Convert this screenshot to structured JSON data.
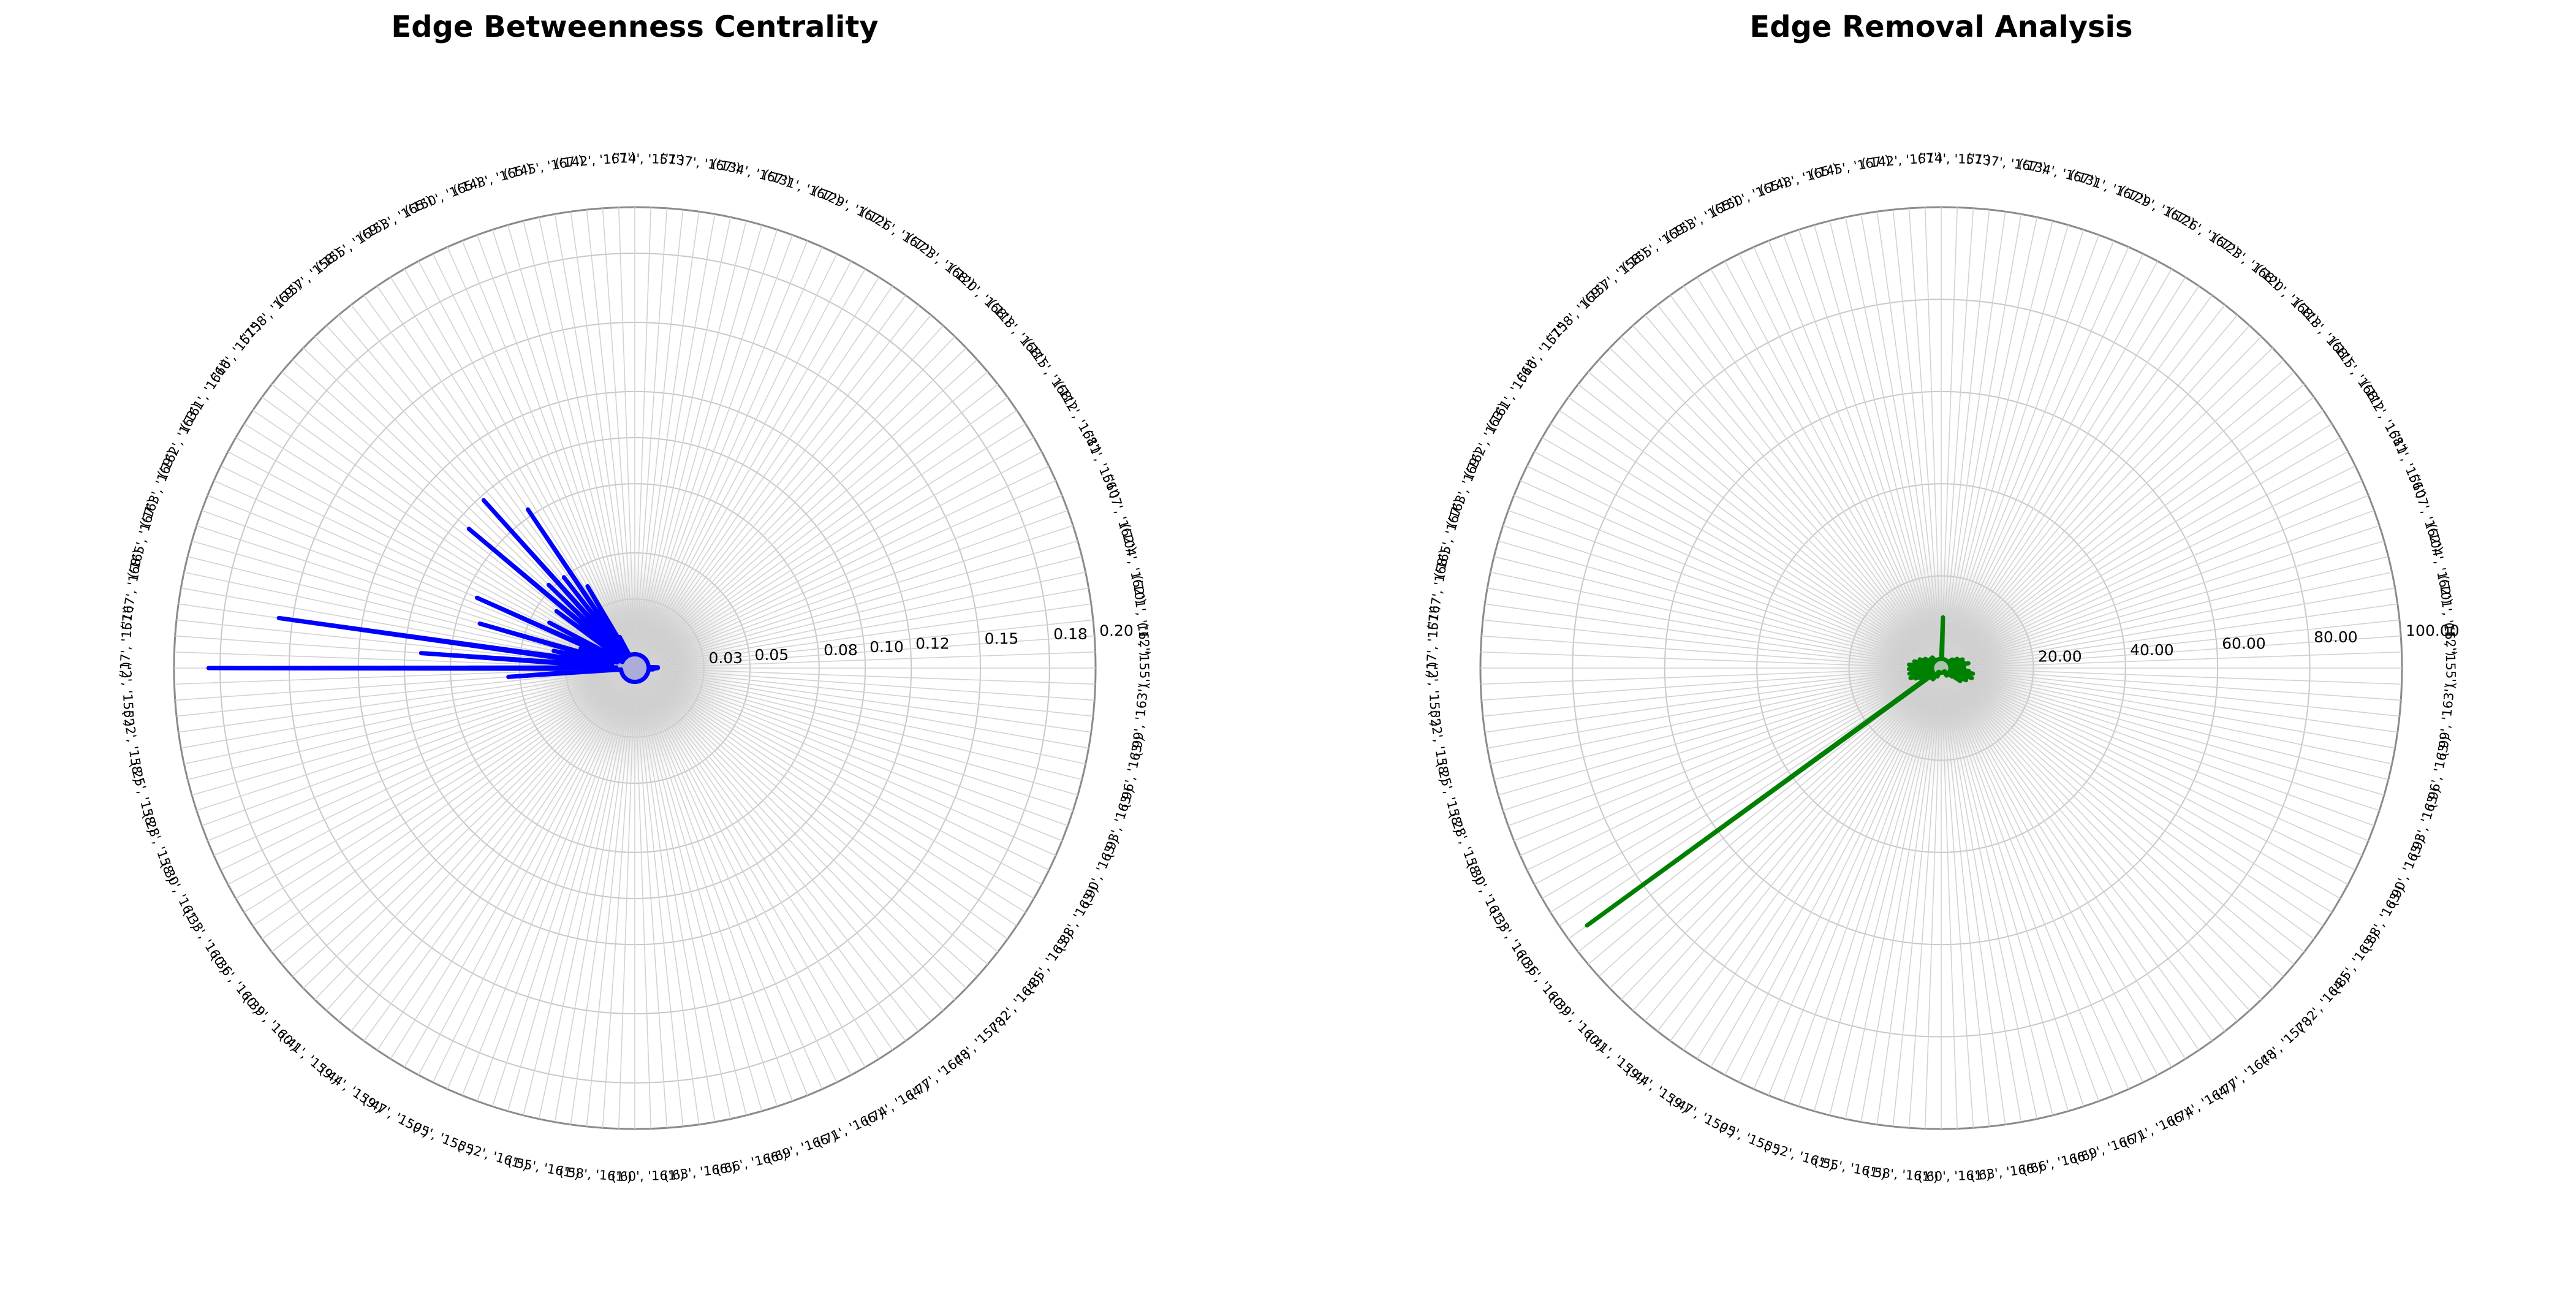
{
  "figure": {
    "background": "#ffffff"
  },
  "chart_data": [
    {
      "type": "line",
      "subtype": "polar",
      "title": "Edge Betweenness Centrality",
      "color": "#0000ff",
      "fill_color": "#0000ff",
      "rlim": [
        0,
        0.2
      ],
      "rticks": [
        0.03,
        0.05,
        0.08,
        0.1,
        0.12,
        0.15,
        0.18,
        0.2
      ],
      "rtick_labels": [
        "0.03",
        "0.05",
        "0.08",
        "0.10",
        "0.12",
        "0.15",
        "0.18",
        "0.20"
      ],
      "category_labels": [
        "('1', '155')",
        "('99', '163')",
        "('96', '163')",
        "('93', '163')",
        "('90', '163')",
        "('88', '163')",
        "('85', '163')",
        "('82', '164')",
        "('8', '157')",
        "('77', '164')",
        "('74', '164')",
        "('71', '166')",
        "('69', '166')",
        "('66', '166')",
        "('63', '166')",
        "('60', '161')",
        "('58', '161')",
        "('55', '161')",
        "('52', '161')",
        "('5', '155')",
        "('47', '159')",
        "('44', '159')",
        "('41', '159')",
        "('39', '160')",
        "('36', '160')",
        "('33', '160')",
        "('30', '161')",
        "('28', '158')",
        "('25', '158')",
        "('22', '158')",
        "('2', '155')",
        "('17', '157')",
        "('167', '168')",
        "('165', '167')",
        "('163', '169')",
        "('162', '163')",
        "('161', '166')",
        "('16', '157')",
        "('158', '169')",
        "('157', '158')",
        "('155', '169')",
        "('153', '165')",
        "('150', '165')",
        "('148', '165')",
        "('145', '167')",
        "('142', '167')",
        "('14', '157')",
        "('137', '167')",
        "('134', '167')",
        "('131', '167')",
        "('129', '167')",
        "('126', '167')",
        "('123', '168')",
        "('120', '168')",
        "('118', '168')",
        "('115', '168')",
        "('112', '168')",
        "('11', '156')",
        "('107', '162')",
        "('104', '162')",
        "('101', '162')"
      ],
      "n_spokes": 180,
      "values_description": "",
      "values": [
        0.01,
        0.008,
        0.008,
        0.006,
        0.006,
        0.006,
        0.006,
        0.006,
        0.006,
        0.006,
        0.006,
        0.006,
        0.006,
        0.006,
        0.006,
        0.006,
        0.006,
        0.006,
        0.006,
        0.006,
        0.006,
        0.006,
        0.006,
        0.006,
        0.006,
        0.006,
        0.006,
        0.006,
        0.006,
        0.006,
        0.006,
        0.006,
        0.006,
        0.006,
        0.006,
        0.006,
        0.006,
        0.006,
        0.006,
        0.006,
        0.006,
        0.006,
        0.006,
        0.006,
        0.006,
        0.006,
        0.006,
        0.006,
        0.006,
        0.006,
        0.006,
        0.006,
        0.006,
        0.006,
        0.006,
        0.006,
        0.006,
        0.006,
        0.006,
        0.006,
        0.006,
        0.006,
        0.006,
        0.006,
        0.006,
        0.006,
        0.006,
        0.006,
        0.006,
        0.006,
        0.006,
        0.006,
        0.006,
        0.006,
        0.006,
        0.006,
        0.006,
        0.006,
        0.006,
        0.006,
        0.006,
        0.006,
        0.006,
        0.006,
        0.006,
        0.006,
        0.006,
        0.006,
        0.055,
        0.01,
        0.185,
        0.008,
        0.093,
        0.01,
        0.156,
        0.01,
        0.036,
        0.01,
        0.07,
        0.008,
        0.025,
        0.01,
        0.075,
        0.006,
        0.042,
        0.006,
        0.012,
        0.01,
        0.042,
        0.006,
        0.094,
        0.008,
        0.052,
        0.006,
        0.098,
        0.006,
        0.05,
        0.006,
        0.083,
        0.006,
        0.041,
        0.01,
        0.015,
        0.008,
        0.006,
        0.006,
        0.006,
        0.006,
        0.006,
        0.006,
        0.006,
        0.006,
        0.006,
        0.006,
        0.006,
        0.006,
        0.006,
        0.006,
        0.006,
        0.006,
        0.006,
        0.006,
        0.006,
        0.006,
        0.006,
        0.006,
        0.006,
        0.006,
        0.006,
        0.006,
        0.006,
        0.006,
        0.006,
        0.006,
        0.006,
        0.006,
        0.006,
        0.006,
        0.006,
        0.006,
        0.006,
        0.006,
        0.006,
        0.006,
        0.006,
        0.006,
        0.006,
        0.006,
        0.006,
        0.006,
        0.006,
        0.006,
        0.006,
        0.006,
        0.006,
        0.006,
        0.006,
        0.006,
        0.006,
        0.01
      ],
      "grid": true,
      "legend": "none"
    },
    {
      "type": "line",
      "subtype": "polar",
      "title": "Edge Removal Analysis",
      "color": "#008000",
      "fill_color": "#008000",
      "rlim": [
        0,
        100
      ],
      "rticks": [
        20,
        40,
        60,
        80,
        100
      ],
      "rtick_labels": [
        "20.00",
        "40.00",
        "60.00",
        "80.00",
        "100.00"
      ],
      "category_labels": [
        "('1', '155')",
        "('99', '163')",
        "('96', '163')",
        "('93', '163')",
        "('90', '163')",
        "('88', '163')",
        "('85', '163')",
        "('82', '164')",
        "('8', '157')",
        "('77', '164')",
        "('74', '164')",
        "('71', '166')",
        "('69', '166')",
        "('66', '166')",
        "('63', '166')",
        "('60', '161')",
        "('58', '161')",
        "('55', '161')",
        "('52', '161')",
        "('5', '155')",
        "('47', '159')",
        "('44', '159')",
        "('41', '159')",
        "('39', '160')",
        "('36', '160')",
        "('33', '160')",
        "('30', '161')",
        "('28', '158')",
        "('25', '158')",
        "('22', '158')",
        "('2', '155')",
        "('17', '157')",
        "('167', '168')",
        "('165', '167')",
        "('163', '169')",
        "('162', '163')",
        "('161', '166')",
        "('16', '157')",
        "('158', '169')",
        "('157', '158')",
        "('155', '169')",
        "('153', '165')",
        "('150', '165')",
        "('148', '165')",
        "('145', '167')",
        "('142', '167')",
        "('14', '157')",
        "('137', '167')",
        "('134', '167')",
        "('131', '167')",
        "('129', '167')",
        "('126', '167')",
        "('123', '168')",
        "('120', '168')",
        "('118', '168')",
        "('115', '168')",
        "('112', '168')",
        "('11', '156')",
        "('107', '162')",
        "('104', '162')",
        "('101', '162')"
      ],
      "n_spokes": 180,
      "values": [
        5,
        3,
        2,
        6,
        2,
        7,
        2,
        6,
        2,
        7,
        2,
        5,
        2,
        6,
        2,
        4,
        2,
        5,
        2,
        3,
        2,
        2,
        1,
        2,
        1,
        2,
        1,
        2,
        1,
        1,
        1,
        1,
        1,
        1,
        1,
        1,
        1,
        1,
        1,
        1,
        1,
        1,
        1,
        1,
        1,
        1,
        1,
        1,
        1,
        1,
        1,
        1,
        1,
        1,
        1,
        1,
        1,
        2,
        1,
        2,
        1,
        2,
        1,
        3,
        2,
        3,
        2,
        3,
        2,
        3,
        2,
        3,
        95,
        3,
        2,
        4,
        2,
        5,
        2,
        6,
        2,
        7,
        2,
        5,
        2,
        7,
        2,
        6,
        3,
        7,
        2,
        6,
        3,
        7,
        2,
        5,
        3,
        6,
        2,
        4,
        2,
        5,
        2,
        3,
        2,
        4,
        2,
        3,
        2,
        3,
        2,
        3,
        2,
        2,
        2,
        3,
        2,
        2,
        2,
        2,
        2,
        2,
        2,
        2,
        2,
        2,
        2,
        2,
        2,
        2,
        2,
        2,
        2,
        2,
        2,
        2,
        11,
        3,
        2,
        2,
        2,
        2,
        2,
        2,
        2,
        2,
        2,
        2,
        2,
        2,
        2,
        2,
        2,
        2,
        2,
        2,
        2,
        2,
        2,
        2,
        2,
        3,
        2,
        3,
        2,
        4,
        2,
        4,
        2,
        5,
        2,
        4,
        2,
        5,
        2,
        6,
        2,
        5,
        2,
        4
      ],
      "grid": true,
      "legend": "none"
    }
  ]
}
